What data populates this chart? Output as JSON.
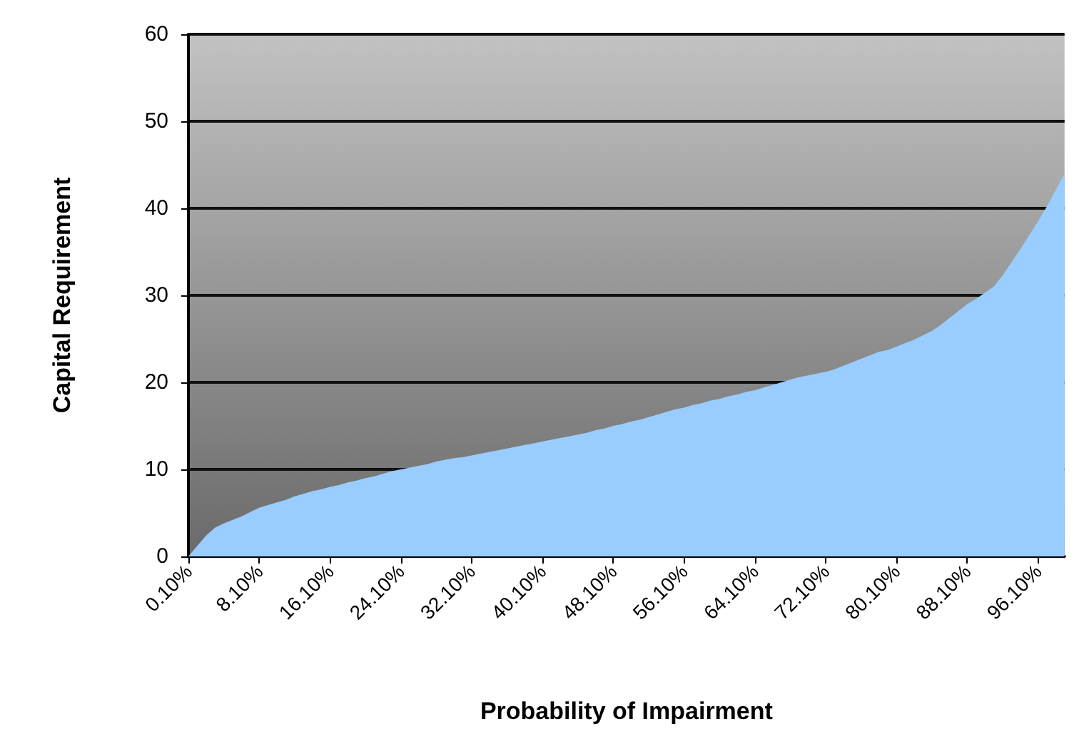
{
  "chart_data": {
    "type": "area",
    "xlabel": "Probability of Impairment",
    "ylabel": "Capital Requirement",
    "categories": [
      "0.10%",
      null,
      null,
      null,
      null,
      null,
      null,
      null,
      "8.10%",
      null,
      null,
      null,
      null,
      null,
      null,
      null,
      "16.10%",
      null,
      null,
      null,
      null,
      null,
      null,
      null,
      "24.10%",
      null,
      null,
      null,
      null,
      null,
      null,
      null,
      "32.10%",
      null,
      null,
      null,
      null,
      null,
      null,
      null,
      "40.10%",
      null,
      null,
      null,
      null,
      null,
      null,
      null,
      "48.10%",
      null,
      null,
      null,
      null,
      null,
      null,
      null,
      "56.10%",
      null,
      null,
      null,
      null,
      null,
      null,
      null,
      "64.10%",
      null,
      null,
      null,
      null,
      null,
      null,
      null,
      "72.10%",
      null,
      null,
      null,
      null,
      null,
      null,
      null,
      "80.10%",
      null,
      null,
      null,
      null,
      null,
      null,
      null,
      "88.10%",
      null,
      null,
      null,
      null,
      null,
      null,
      null,
      "96.10%",
      null,
      null,
      null
    ],
    "series": [
      {
        "color": "#99ccff",
        "values": [
          0,
          1.2,
          2.4,
          3.3,
          3.8,
          4.2,
          4.6,
          5.1,
          5.6,
          5.9,
          6.2,
          6.5,
          6.9,
          7.2,
          7.5,
          7.7,
          8.0,
          8.2,
          8.5,
          8.7,
          9.0,
          9.2,
          9.5,
          9.8,
          10.0,
          10.2,
          10.4,
          10.6,
          10.9,
          11.1,
          11.3,
          11.4,
          11.6,
          11.8,
          12.0,
          12.2,
          12.4,
          12.6,
          12.8,
          13.0,
          13.2,
          13.4,
          13.6,
          13.8,
          14.0,
          14.2,
          14.5,
          14.7,
          15.0,
          15.2,
          15.5,
          15.7,
          16.0,
          16.3,
          16.6,
          16.9,
          17.1,
          17.4,
          17.6,
          17.9,
          18.1,
          18.4,
          18.6,
          18.9,
          19.1,
          19.4,
          19.7,
          20.0,
          20.3,
          20.6,
          20.8,
          21.0,
          21.2,
          21.5,
          21.9,
          22.3,
          22.7,
          23.1,
          23.5,
          23.7,
          24.1,
          24.5,
          24.9,
          25.4,
          25.9,
          26.6,
          27.4,
          28.2,
          29.0,
          29.6,
          30.3,
          31.0,
          32.3,
          33.8,
          35.3,
          36.9,
          38.5,
          40.2,
          42.1,
          44.0
        ]
      }
    ],
    "ylim": [
      0,
      60
    ],
    "yticks": [
      0,
      10,
      20,
      30,
      40,
      50,
      60
    ],
    "grid": "y",
    "marker": "none"
  }
}
